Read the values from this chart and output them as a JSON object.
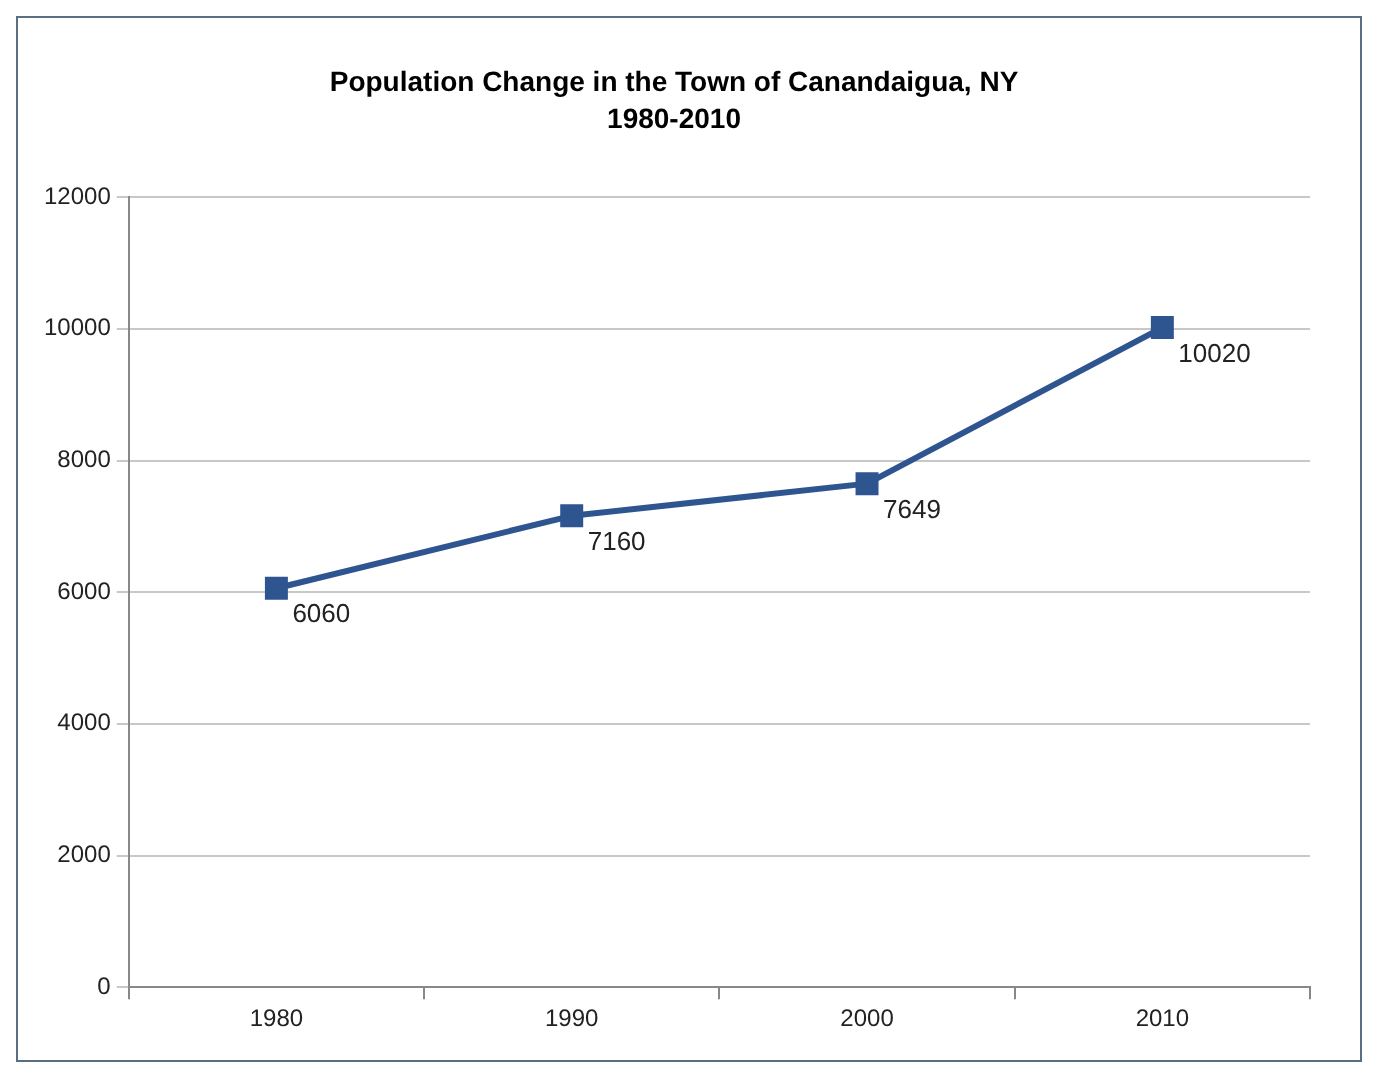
{
  "chart_data": {
    "type": "line",
    "title": "Population Change in the Town of Canandaigua, NY",
    "subtitle": "1980-2010",
    "categories": [
      "1980",
      "1990",
      "2000",
      "2010"
    ],
    "series": [
      {
        "color": "#2e5590",
        "values": [
          6060,
          7160,
          7649,
          10020
        ]
      }
    ],
    "ylim": [
      0,
      12000
    ],
    "yticks": [
      0,
      2000,
      4000,
      6000,
      8000,
      10000,
      12000
    ],
    "grid": "y",
    "legend": false,
    "marker": "square",
    "line_style": "solid",
    "data_labels": true
  }
}
